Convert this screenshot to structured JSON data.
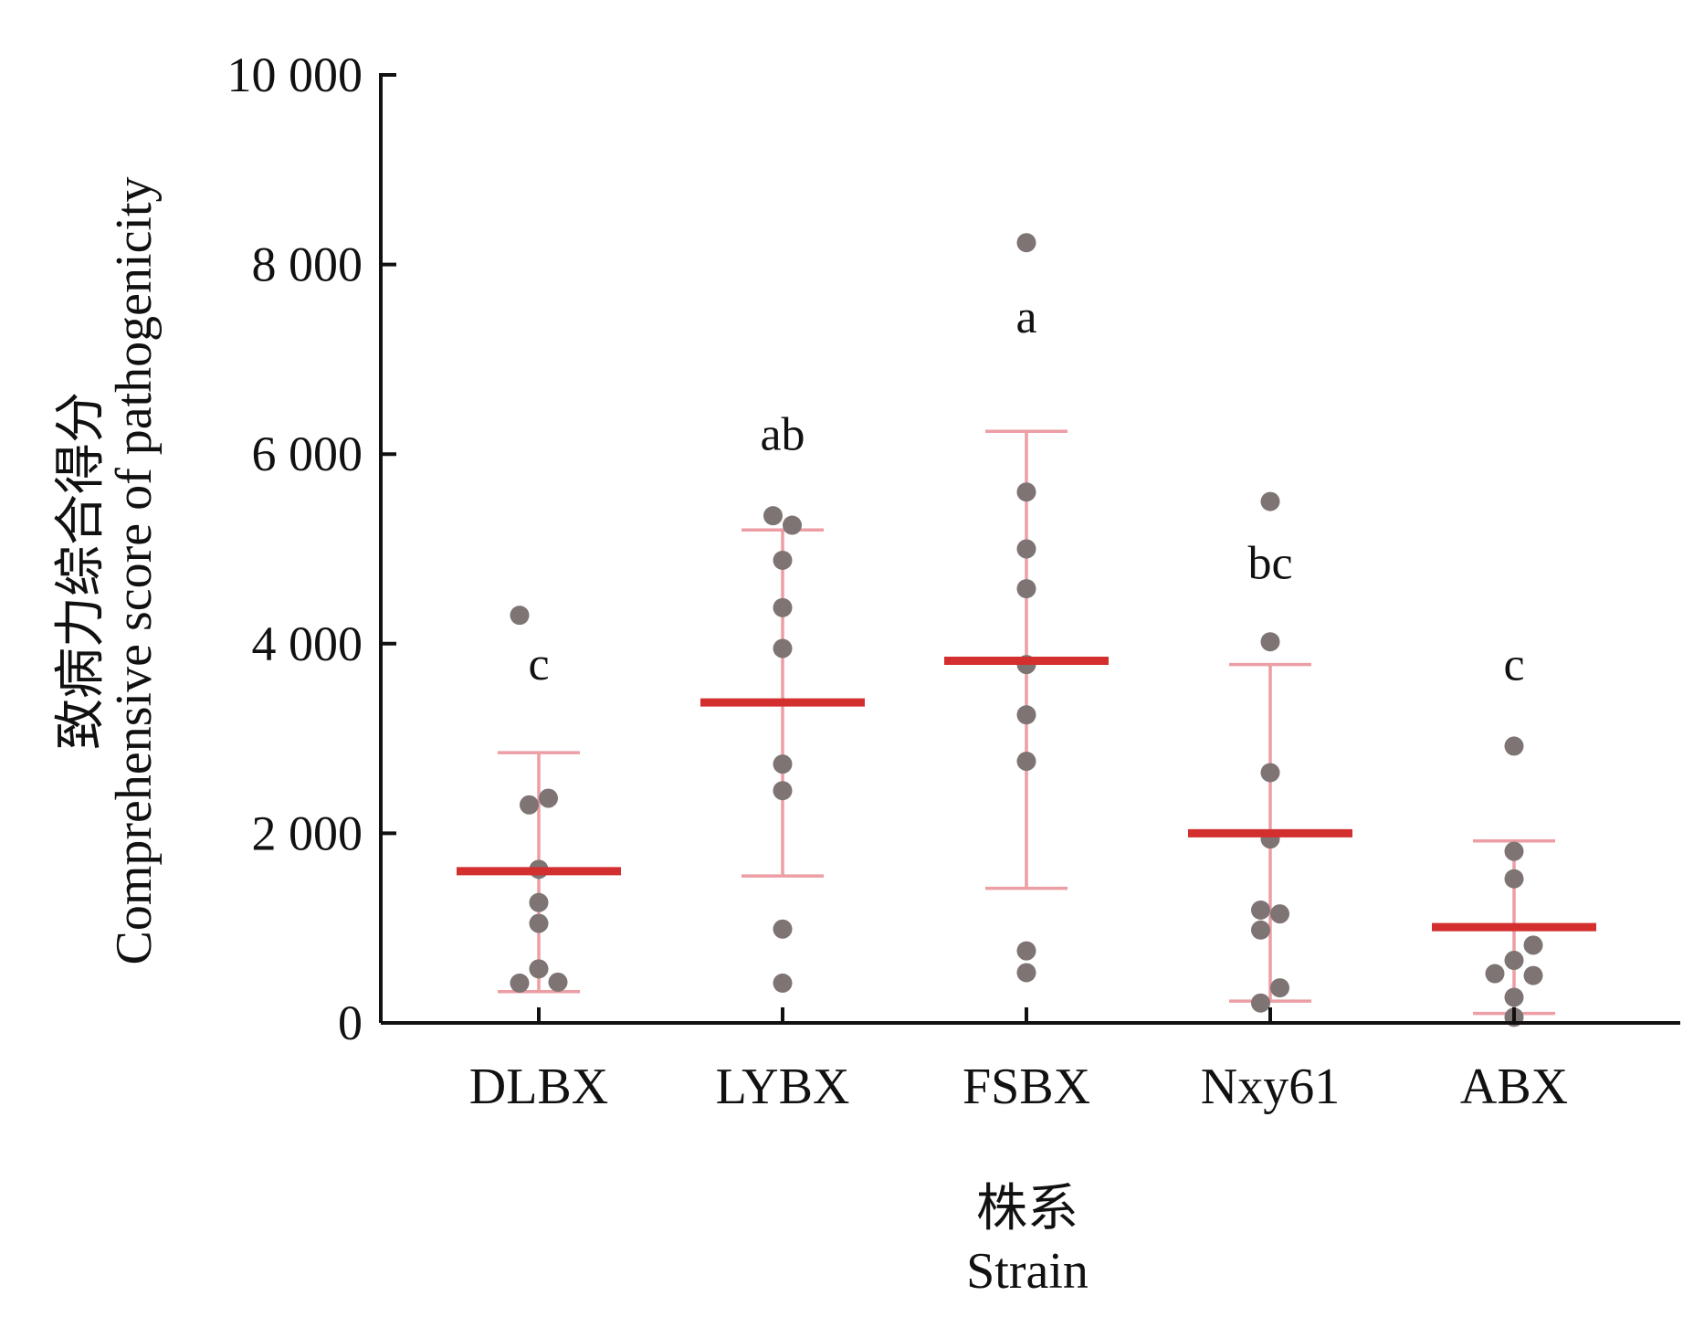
{
  "chart_data": {
    "type": "scatter",
    "subtype": "dot-plot-with-mean-and-sd",
    "title": "",
    "xlabel_cn": "株系",
    "xlabel_en": "Strain",
    "ylabel_cn": "致病力综合得分",
    "ylabel_en": "Comprehensive score of pathogenicity",
    "ylim": [
      0,
      10000
    ],
    "yticks": [
      0,
      2000,
      4000,
      6000,
      8000,
      10000
    ],
    "ytick_labels": [
      "0",
      "2 000",
      "4 000",
      "6 000",
      "8 000",
      "10 000"
    ],
    "categories": [
      "DLBX",
      "LYBX",
      "FSBX",
      "Nxy61",
      "ABX"
    ],
    "groups": [
      {
        "name": "DLBX",
        "mean": 1600,
        "sd_low": 330,
        "sd_high": 2850,
        "significance": "c",
        "points": [
          {
            "dx": -0.3,
            "y": 4300
          },
          {
            "dx": -0.15,
            "y": 2300
          },
          {
            "dx": 0.15,
            "y": 2370
          },
          {
            "dx": 0.0,
            "y": 1620
          },
          {
            "dx": 0.0,
            "y": 1270
          },
          {
            "dx": 0.0,
            "y": 1050
          },
          {
            "dx": 0.0,
            "y": 570
          },
          {
            "dx": -0.3,
            "y": 420
          },
          {
            "dx": 0.3,
            "y": 430
          }
        ]
      },
      {
        "name": "LYBX",
        "mean": 3380,
        "sd_low": 1550,
        "sd_high": 5200,
        "significance": "ab",
        "points": [
          {
            "dx": -0.15,
            "y": 5350
          },
          {
            "dx": 0.15,
            "y": 5250
          },
          {
            "dx": 0.0,
            "y": 4880
          },
          {
            "dx": 0.0,
            "y": 4380
          },
          {
            "dx": 0.0,
            "y": 3950
          },
          {
            "dx": 0.0,
            "y": 2730
          },
          {
            "dx": 0.0,
            "y": 2450
          },
          {
            "dx": 0.0,
            "y": 990
          },
          {
            "dx": 0.0,
            "y": 420
          }
        ]
      },
      {
        "name": "FSBX",
        "mean": 3820,
        "sd_low": 1420,
        "sd_high": 6240,
        "significance": "a",
        "points": [
          {
            "dx": 0.0,
            "y": 8230
          },
          {
            "dx": 0.0,
            "y": 5600
          },
          {
            "dx": 0.0,
            "y": 5000
          },
          {
            "dx": 0.0,
            "y": 4580
          },
          {
            "dx": 0.0,
            "y": 3780
          },
          {
            "dx": 0.0,
            "y": 3250
          },
          {
            "dx": 0.0,
            "y": 2760
          },
          {
            "dx": 0.0,
            "y": 760
          },
          {
            "dx": 0.0,
            "y": 530
          }
        ]
      },
      {
        "name": "Nxy61",
        "mean": 2000,
        "sd_low": 230,
        "sd_high": 3780,
        "significance": "bc",
        "points": [
          {
            "dx": 0.0,
            "y": 5500
          },
          {
            "dx": 0.0,
            "y": 4020
          },
          {
            "dx": 0.0,
            "y": 2640
          },
          {
            "dx": 0.0,
            "y": 1940
          },
          {
            "dx": -0.15,
            "y": 1190
          },
          {
            "dx": 0.15,
            "y": 1150
          },
          {
            "dx": -0.15,
            "y": 980
          },
          {
            "dx": 0.15,
            "y": 370
          },
          {
            "dx": -0.15,
            "y": 210
          }
        ]
      },
      {
        "name": "ABX",
        "mean": 1010,
        "sd_low": 100,
        "sd_high": 1920,
        "significance": "c",
        "points": [
          {
            "dx": 0.0,
            "y": 2920
          },
          {
            "dx": 0.0,
            "y": 1810
          },
          {
            "dx": 0.0,
            "y": 1520
          },
          {
            "dx": 0.3,
            "y": 820
          },
          {
            "dx": 0.0,
            "y": 660
          },
          {
            "dx": -0.3,
            "y": 520
          },
          {
            "dx": 0.3,
            "y": 500
          },
          {
            "dx": 0.0,
            "y": 270
          },
          {
            "dx": 0.0,
            "y": 60
          }
        ]
      }
    ],
    "colors": {
      "mean_line": "#d32f2f",
      "error_bar": "#ec9ea4",
      "point": "#7d7473",
      "axis": "#111111"
    }
  }
}
